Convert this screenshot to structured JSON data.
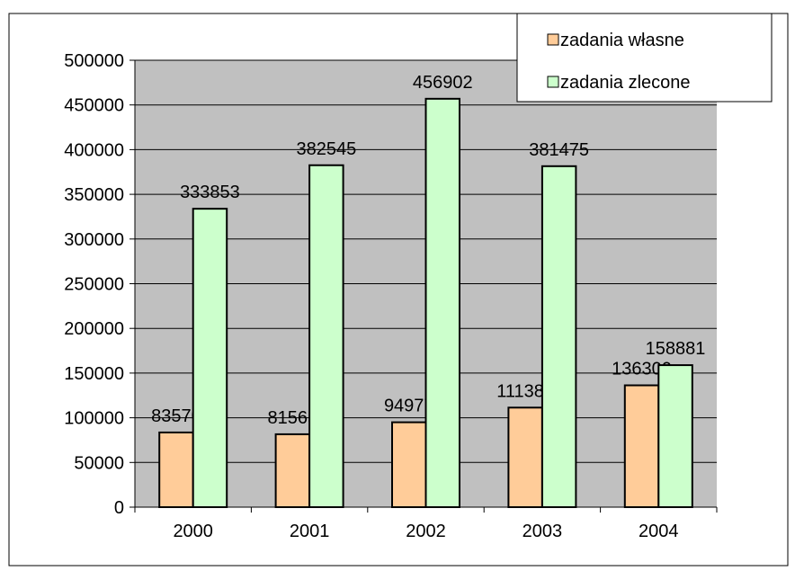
{
  "chart_data": {
    "type": "bar",
    "categories": [
      "2000",
      "2001",
      "2002",
      "2003",
      "2004"
    ],
    "series": [
      {
        "name": "zadania własne",
        "color": "#ffcc99",
        "values": [
          83570,
          81565,
          94977,
          111381,
          136300
        ]
      },
      {
        "name": "zadania zlecone",
        "color": "#ccffcc",
        "values": [
          333853,
          382545,
          456902,
          381475,
          158881
        ]
      }
    ],
    "ylim": [
      0,
      500000
    ],
    "yticks": [
      0,
      50000,
      100000,
      150000,
      200000,
      250000,
      300000,
      350000,
      400000,
      450000,
      500000
    ],
    "grid": true,
    "legend": "top-right",
    "plot_background": "#c0c0c0"
  }
}
